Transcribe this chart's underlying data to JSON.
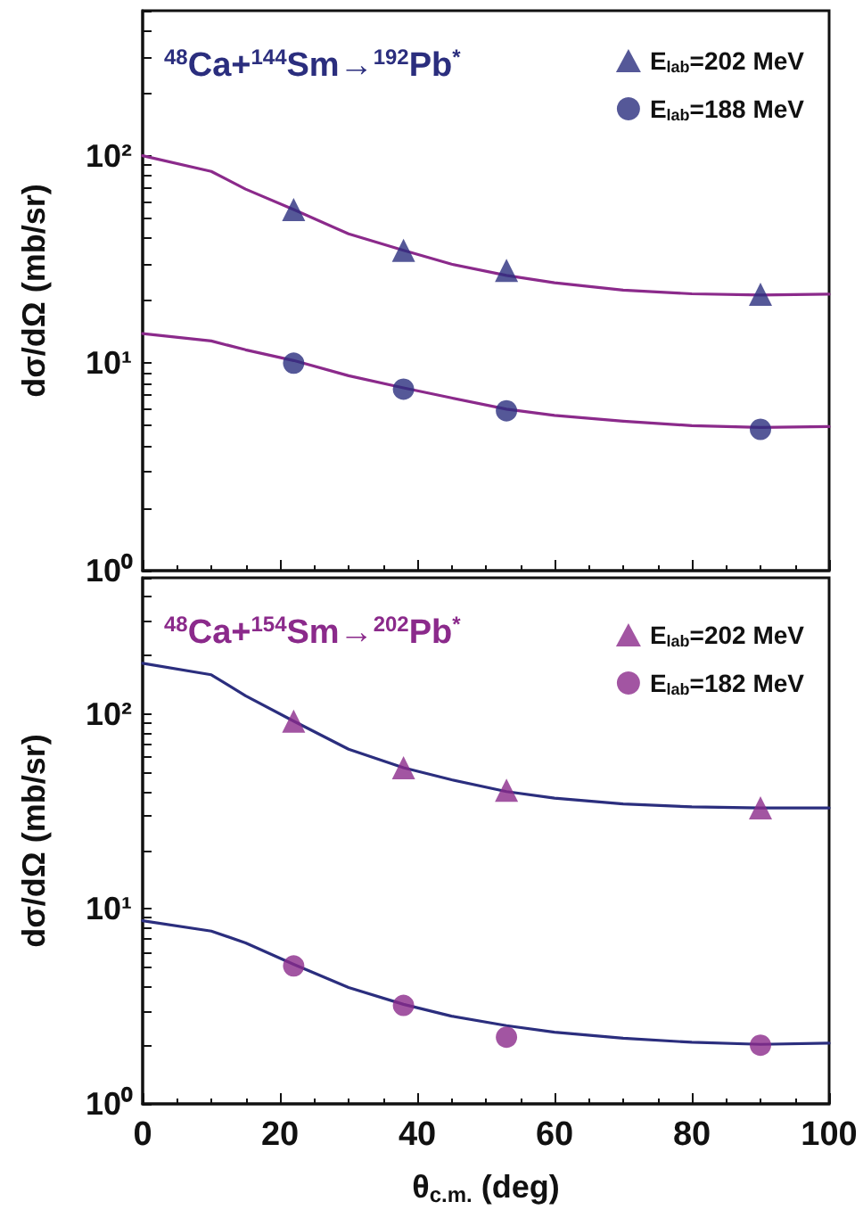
{
  "chart_data": [
    {
      "type": "scatter",
      "ylabel": "dσ/dΩ (mb/sr)",
      "annotations": [
        "$^{48}$Ca+$^{144}$Sm→$^{192}$Pb$^{*}$"
      ],
      "log": "y",
      "legend": "top right",
      "grid": false,
      "tick_labels": "y",
      "xlim": [
        0,
        100
      ],
      "xticks": [
        {
          "value": 0,
          "label": null
        },
        {
          "value": 20,
          "label": null
        },
        {
          "value": 40,
          "label": null
        },
        {
          "value": 60,
          "label": null
        },
        {
          "value": 80,
          "label": null
        },
        {
          "value": 100,
          "label": null
        }
      ],
      "ylim": [
        1,
        500
      ],
      "yticks": [
        {
          "value": 1,
          "label": "10⁰"
        },
        {
          "value": 2,
          "label": null
        },
        {
          "value": 3,
          "label": null
        },
        {
          "value": 4,
          "label": null
        },
        {
          "value": 5,
          "label": null
        },
        {
          "value": 6,
          "label": null
        },
        {
          "value": 7,
          "label": null
        },
        {
          "value": 8,
          "label": null
        },
        {
          "value": 9,
          "label": null
        },
        {
          "value": 10,
          "label": "10¹"
        },
        {
          "value": 20,
          "label": null
        },
        {
          "value": 30,
          "label": null
        },
        {
          "value": 40,
          "label": null
        },
        {
          "value": 50,
          "label": null
        },
        {
          "value": 60,
          "label": null
        },
        {
          "value": 70,
          "label": null
        },
        {
          "value": 80,
          "label": null
        },
        {
          "value": 90,
          "label": null
        },
        {
          "value": 100,
          "label": "10²"
        },
        {
          "value": 200,
          "label": null
        },
        {
          "value": 300,
          "label": null
        },
        {
          "value": 400,
          "label": null
        },
        {
          "value": 500,
          "label": null
        }
      ],
      "series": [
        {
          "name": "E$_{lab}$=202 MeV",
          "type": "scatter",
          "marker": "triangle",
          "color": "#2b2e7e",
          "x": [
            22,
            38,
            53,
            90
          ],
          "values": [
            55,
            35,
            28,
            21.5
          ]
        },
        {
          "name": "E$_{lab}$=188 MeV",
          "type": "scatter",
          "marker": "circle",
          "color": "#2b2e7e",
          "x": [
            22,
            38,
            53,
            90
          ],
          "values": [
            10,
            7.5,
            5.9,
            4.8
          ]
        },
        {
          "type": "line",
          "marker": "none",
          "line_style": "solid",
          "color": "#8b2a8b",
          "x": [
            0,
            10,
            15,
            22,
            30,
            38,
            45,
            53,
            60,
            70,
            80,
            90,
            100
          ],
          "values": [
            100,
            84,
            69,
            55,
            42,
            35,
            30,
            26.5,
            24.4,
            22.5,
            21.6,
            21.3,
            21.5
          ]
        },
        {
          "type": "line",
          "marker": "none",
          "line_style": "solid",
          "color": "#8b2a8b",
          "x": [
            0,
            10,
            15,
            22,
            30,
            38,
            45,
            53,
            60,
            70,
            80,
            90,
            100
          ],
          "values": [
            13.9,
            12.8,
            11.6,
            10.3,
            8.7,
            7.6,
            6.8,
            6.0,
            5.6,
            5.25,
            5.0,
            4.9,
            4.95
          ]
        }
      ]
    },
    {
      "type": "scatter",
      "xlabel": "θ$_{c.m.}$ (deg)",
      "ylabel": "dσ/dΩ (mb/sr)",
      "annotations": [
        "$^{48}$Ca+$^{154}$Sm→$^{202}$Pb$^{*}$"
      ],
      "log": "y",
      "legend": "top right",
      "grid": false,
      "xlim": [
        0,
        100
      ],
      "xticks": [
        0,
        20,
        40,
        60,
        80,
        100
      ],
      "ylim": [
        1,
        500
      ],
      "yticks": [
        {
          "value": 1,
          "label": "10⁰"
        },
        {
          "value": 2,
          "label": null
        },
        {
          "value": 3,
          "label": null
        },
        {
          "value": 4,
          "label": null
        },
        {
          "value": 5,
          "label": null
        },
        {
          "value": 6,
          "label": null
        },
        {
          "value": 7,
          "label": null
        },
        {
          "value": 8,
          "label": null
        },
        {
          "value": 9,
          "label": null
        },
        {
          "value": 10,
          "label": "10¹"
        },
        {
          "value": 20,
          "label": null
        },
        {
          "value": 30,
          "label": null
        },
        {
          "value": 40,
          "label": null
        },
        {
          "value": 50,
          "label": null
        },
        {
          "value": 60,
          "label": null
        },
        {
          "value": 70,
          "label": null
        },
        {
          "value": 80,
          "label": null
        },
        {
          "value": 90,
          "label": null
        },
        {
          "value": 100,
          "label": "10²"
        },
        {
          "value": 200,
          "label": null
        },
        {
          "value": 300,
          "label": null
        },
        {
          "value": 400,
          "label": null
        },
        {
          "value": 500,
          "label": null
        }
      ],
      "series": [
        {
          "name": "E$_{lab}$=202 MeV",
          "type": "scatter",
          "marker": "triangle",
          "color": "#8b2a8b",
          "x": [
            22,
            38,
            53,
            90
          ],
          "values": [
            92,
            53,
            40.6,
            33
          ]
        },
        {
          "name": "E$_{lab}$=182 MeV",
          "type": "scatter",
          "marker": "circle",
          "color": "#8b2a8b",
          "x": [
            22,
            38,
            53,
            90
          ],
          "values": [
            5.1,
            3.2,
            2.2,
            2.0
          ]
        },
        {
          "type": "line",
          "marker": "none",
          "line_style": "solid",
          "color": "#2b2e7e",
          "x": [
            0,
            10,
            15,
            22,
            30,
            38,
            45,
            53,
            60,
            70,
            80,
            90,
            100
          ],
          "values": [
            182,
            159,
            124,
            92,
            66,
            53,
            46,
            40,
            37,
            34.6,
            33.4,
            33,
            33
          ]
        },
        {
          "type": "line",
          "marker": "none",
          "line_style": "solid",
          "color": "#2b2e7e",
          "x": [
            0,
            10,
            15,
            22,
            30,
            38,
            45,
            53,
            60,
            70,
            80,
            90,
            100
          ],
          "values": [
            8.7,
            7.7,
            6.7,
            5.2,
            3.95,
            3.24,
            2.82,
            2.52,
            2.33,
            2.17,
            2.07,
            2.02,
            2.05
          ]
        }
      ]
    }
  ]
}
